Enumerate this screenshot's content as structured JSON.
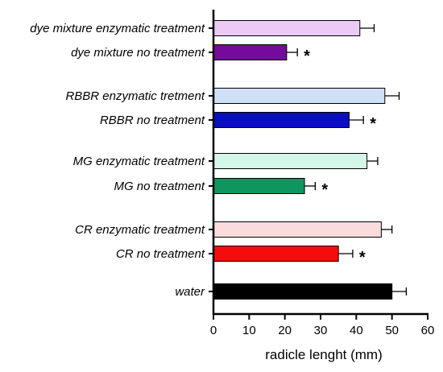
{
  "chart_data": {
    "type": "bar",
    "orientation": "horizontal",
    "xlabel": "radicle lenght (mm)",
    "xlim": [
      0,
      60
    ],
    "xticks": [
      0,
      10,
      20,
      30,
      40,
      50,
      60
    ],
    "bars": [
      {
        "label": "dye mixture enzymatic treatment",
        "value": 41,
        "error": 4,
        "color": "#eccaf6",
        "significant": false
      },
      {
        "label": "dye mixture no treatment",
        "value": 20.5,
        "error": 3,
        "color": "#740b9c",
        "significant": true
      },
      {
        "label": "RBBR enzymatic tretment",
        "value": 48,
        "error": 4,
        "color": "#cfe0f7",
        "significant": false
      },
      {
        "label": "RBBR no treatment",
        "value": 38,
        "error": 4,
        "color": "#0a0fc0",
        "significant": true
      },
      {
        "label": "MG enzymatic treatment",
        "value": 43,
        "error": 3,
        "color": "#d4f8e8",
        "significant": false
      },
      {
        "label": "MG no treatment",
        "value": 25.5,
        "error": 3,
        "color": "#0f965e",
        "significant": true
      },
      {
        "label": "CR enzymatic treatment",
        "value": 47,
        "error": 3,
        "color": "#fadcdc",
        "significant": false
      },
      {
        "label": "CR no treatment",
        "value": 35,
        "error": 4,
        "color": "#f50d0d",
        "significant": true
      },
      {
        "label": "water",
        "value": 50,
        "error": 4,
        "color": "#000000",
        "significant": false
      }
    ],
    "significance_marker": "*"
  }
}
